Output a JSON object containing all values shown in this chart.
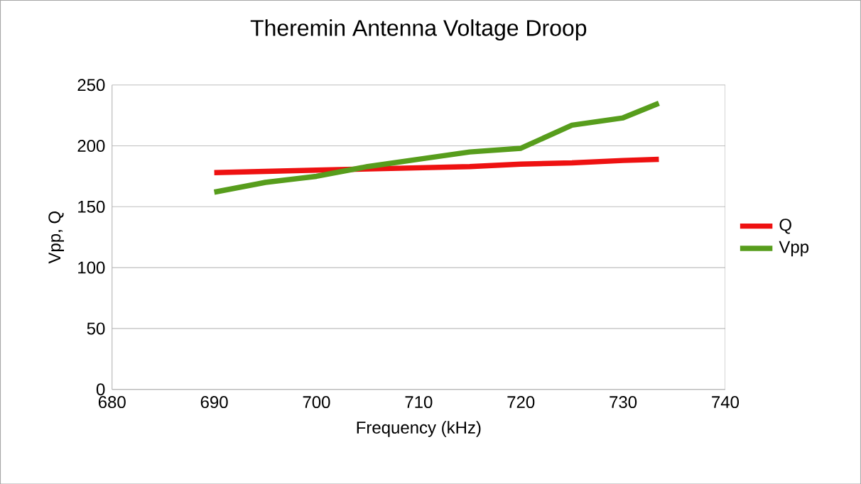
{
  "chart_data": {
    "type": "line",
    "title": "Theremin Antenna Voltage Droop",
    "xlabel": "Frequency (kHz)",
    "ylabel": "Vpp, Q",
    "x": [
      690,
      695,
      700,
      705,
      710,
      715,
      720,
      725,
      730,
      733.5
    ],
    "series": [
      {
        "name": "Q",
        "color": "#ee1111",
        "values": [
          178,
          179,
          180,
          181,
          182,
          183,
          185,
          186,
          188,
          189
        ]
      },
      {
        "name": "Vpp",
        "color": "#579d1c",
        "values": [
          162,
          170,
          175,
          183,
          189,
          195,
          198,
          217,
          223,
          235
        ]
      }
    ],
    "xlim": [
      680,
      740
    ],
    "xticks": [
      680,
      690,
      700,
      710,
      720,
      730,
      740
    ],
    "ylim": [
      0,
      250
    ],
    "yticks": [
      0,
      50,
      100,
      150,
      200,
      250
    ],
    "grid": "y",
    "legend": "right",
    "marker": "none",
    "line_style": "solid"
  }
}
